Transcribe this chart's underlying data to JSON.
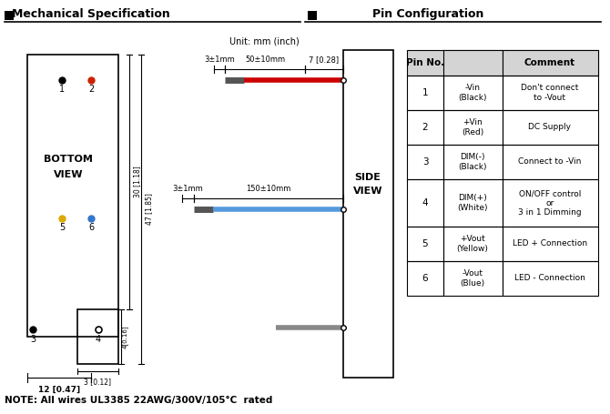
{
  "title_left": "Mechanical Specification",
  "title_right": "Pin Configuration",
  "bg_color": "#ffffff",
  "unit_text": "Unit: mm (inch)",
  "note_text": "NOTE: All wires UL3385 22AWG/300V/105°C  rated",
  "pin_table": {
    "rows": [
      [
        "1",
        "-Vin\n(Black)",
        "Don't connect\nto -Vout"
      ],
      [
        "2",
        "+Vin\n(Red)",
        "DC Supply"
      ],
      [
        "3",
        "DIM(-)\n(Black)",
        "Connect to -Vin"
      ],
      [
        "4",
        "DIM(+)\n(White)",
        "ON/OFF control\nor\n3 in 1 Dimming"
      ],
      [
        "5",
        "+Vout\n(Yellow)",
        "LED + Connection"
      ],
      [
        "6",
        "-Vout\n(Blue)",
        "LED - Connection"
      ]
    ]
  },
  "wire_colors": {
    "red_wire": "#cc0000",
    "blue_wire": "#5599dd",
    "gray_wire": "#888888",
    "dark_gray": "#555555"
  }
}
